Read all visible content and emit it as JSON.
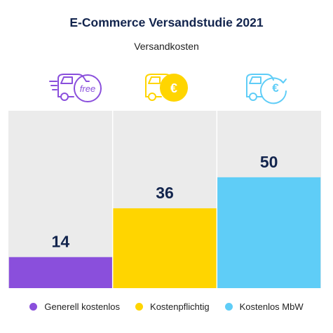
{
  "title": "E-Commerce Versandstudie 2021",
  "subtitle": "Versandkosten",
  "colors": {
    "panel": "#ebebeb",
    "divider": "#ffffff",
    "label": "#12244d"
  },
  "icons": [
    "van-free-icon",
    "van-euro-coin-icon",
    "van-euro-arrow-icon"
  ],
  "icon_text": {
    "free": "free",
    "euro": "€"
  },
  "chart_data": {
    "type": "bar",
    "title": "E-Commerce Versandstudie 2021",
    "subtitle": "Versandkosten",
    "categories": [
      "Generell kostenlos",
      "Kostenpflichtig",
      "Kostenlos MbW"
    ],
    "values": [
      14,
      36,
      50
    ],
    "colors": [
      "#8a4fdc",
      "#ffd500",
      "#5fcdf7"
    ],
    "ylim": [
      0,
      80
    ],
    "grid": false,
    "legend": "bottom"
  }
}
